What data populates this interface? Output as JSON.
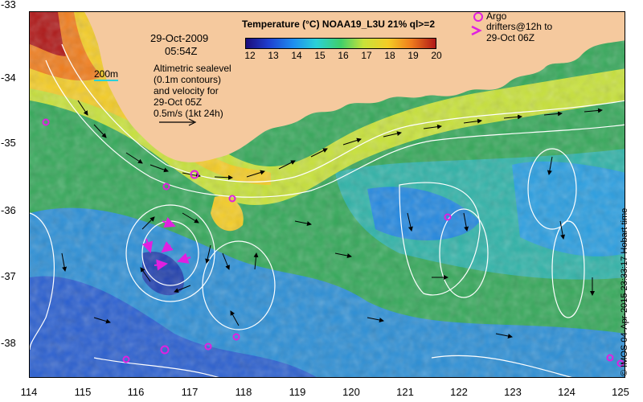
{
  "axes": {
    "y_ticks": [
      "-33",
      "-34",
      "-35",
      "-36",
      "-37",
      "-38"
    ],
    "x_ticks": [
      "114",
      "115",
      "116",
      "117",
      "118",
      "119",
      "120",
      "121",
      "122",
      "123",
      "124",
      "125"
    ]
  },
  "title": "Temperature (°C) NOAA19_L3U 21% ql>=2",
  "colorbar": {
    "ticks": [
      "12",
      "13",
      "14",
      "15",
      "16",
      "17",
      "18",
      "19",
      "20"
    ],
    "colors": [
      "#1a0c7a",
      "#1f3fd0",
      "#1e8ef0",
      "#2ad0d8",
      "#3fcf6a",
      "#c8e23a",
      "#f4cc25",
      "#f07d1d",
      "#b01818"
    ]
  },
  "datetime": {
    "date": "29-Oct-2009",
    "time": "05:54Z"
  },
  "scale_bar": "200m",
  "altimetry_note": {
    "line1": "Altimetric sealevel",
    "line2": "(0.1m contours)",
    "line3": "and velocity for",
    "line4": "29-Oct 05Z",
    "line5": "0.5m/s (1kt 24h)"
  },
  "legend": {
    "circle_label": "Argo",
    "arrow_label_1": "drifters@12h to",
    "arrow_label_2": "29-Oct 06Z",
    "marker_color": "#e020e0"
  },
  "credit": "© IMOS 04-Apr-2015 23:33:17 Hobart time",
  "colors": {
    "land": "#f5c99e",
    "contour": "#ffffff",
    "vector": "#000000"
  }
}
